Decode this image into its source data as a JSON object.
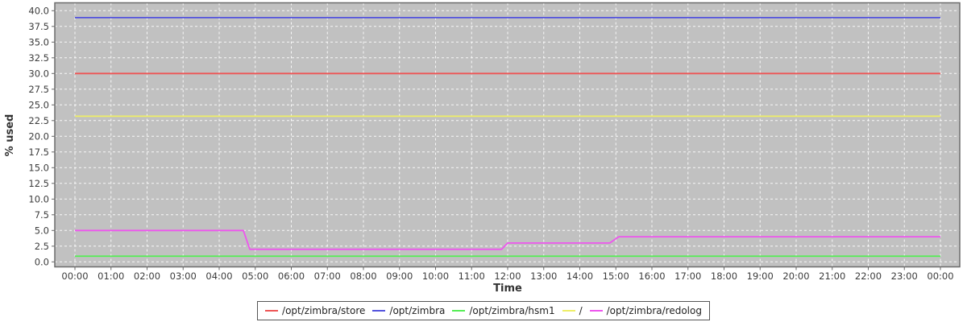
{
  "chart_data": {
    "type": "line",
    "title": "",
    "xlabel": "Time",
    "ylabel": "% used",
    "xlim": [
      0,
      24
    ],
    "ylim": [
      0,
      40
    ],
    "ytick_step": 2.5,
    "grid": "white dashed gridlines on gray plot background",
    "legend_position": "bottom-center",
    "plot_bg_color": "#c1c1c1",
    "grid_color": "#ffffff",
    "border_color": "#6b6b6b",
    "xtick_labels": [
      "00:00",
      "01:00",
      "02:00",
      "03:00",
      "04:00",
      "05:00",
      "06:00",
      "07:00",
      "08:00",
      "09:00",
      "10:00",
      "11:00",
      "12:00",
      "13:00",
      "14:00",
      "15:00",
      "16:00",
      "17:00",
      "18:00",
      "19:00",
      "20:00",
      "21:00",
      "22:00",
      "23:00",
      "00:00"
    ],
    "ytick_labels": [
      "0.0",
      "2.5",
      "5.0",
      "7.5",
      "10.0",
      "12.5",
      "15.0",
      "17.5",
      "20.0",
      "22.5",
      "25.0",
      "27.5",
      "30.0",
      "32.5",
      "35.0",
      "37.5",
      "40.0"
    ],
    "series": [
      {
        "name": "/opt/zimbra/store",
        "color": "#ee5555",
        "points": [
          [
            0,
            30.0
          ],
          [
            24,
            30.0
          ]
        ]
      },
      {
        "name": "/opt/zimbra",
        "color": "#5353dd",
        "points": [
          [
            0,
            38.9
          ],
          [
            24,
            38.9
          ]
        ]
      },
      {
        "name": "/opt/zimbra/hsm1",
        "color": "#55ee55",
        "points": [
          [
            0,
            0.9
          ],
          [
            24,
            0.9
          ]
        ]
      },
      {
        "name": "/",
        "color": "#eeee66",
        "points": [
          [
            0,
            23.2
          ],
          [
            24,
            23.2
          ]
        ]
      },
      {
        "name": "/opt/zimbra/redolog",
        "color": "#ee55ee",
        "points": [
          [
            0,
            5.0
          ],
          [
            4.67,
            5.0
          ],
          [
            4.85,
            2.0
          ],
          [
            11.83,
            2.0
          ],
          [
            12.0,
            3.0
          ],
          [
            14.83,
            3.0
          ],
          [
            15.08,
            4.0
          ],
          [
            24,
            4.0
          ]
        ]
      }
    ]
  }
}
